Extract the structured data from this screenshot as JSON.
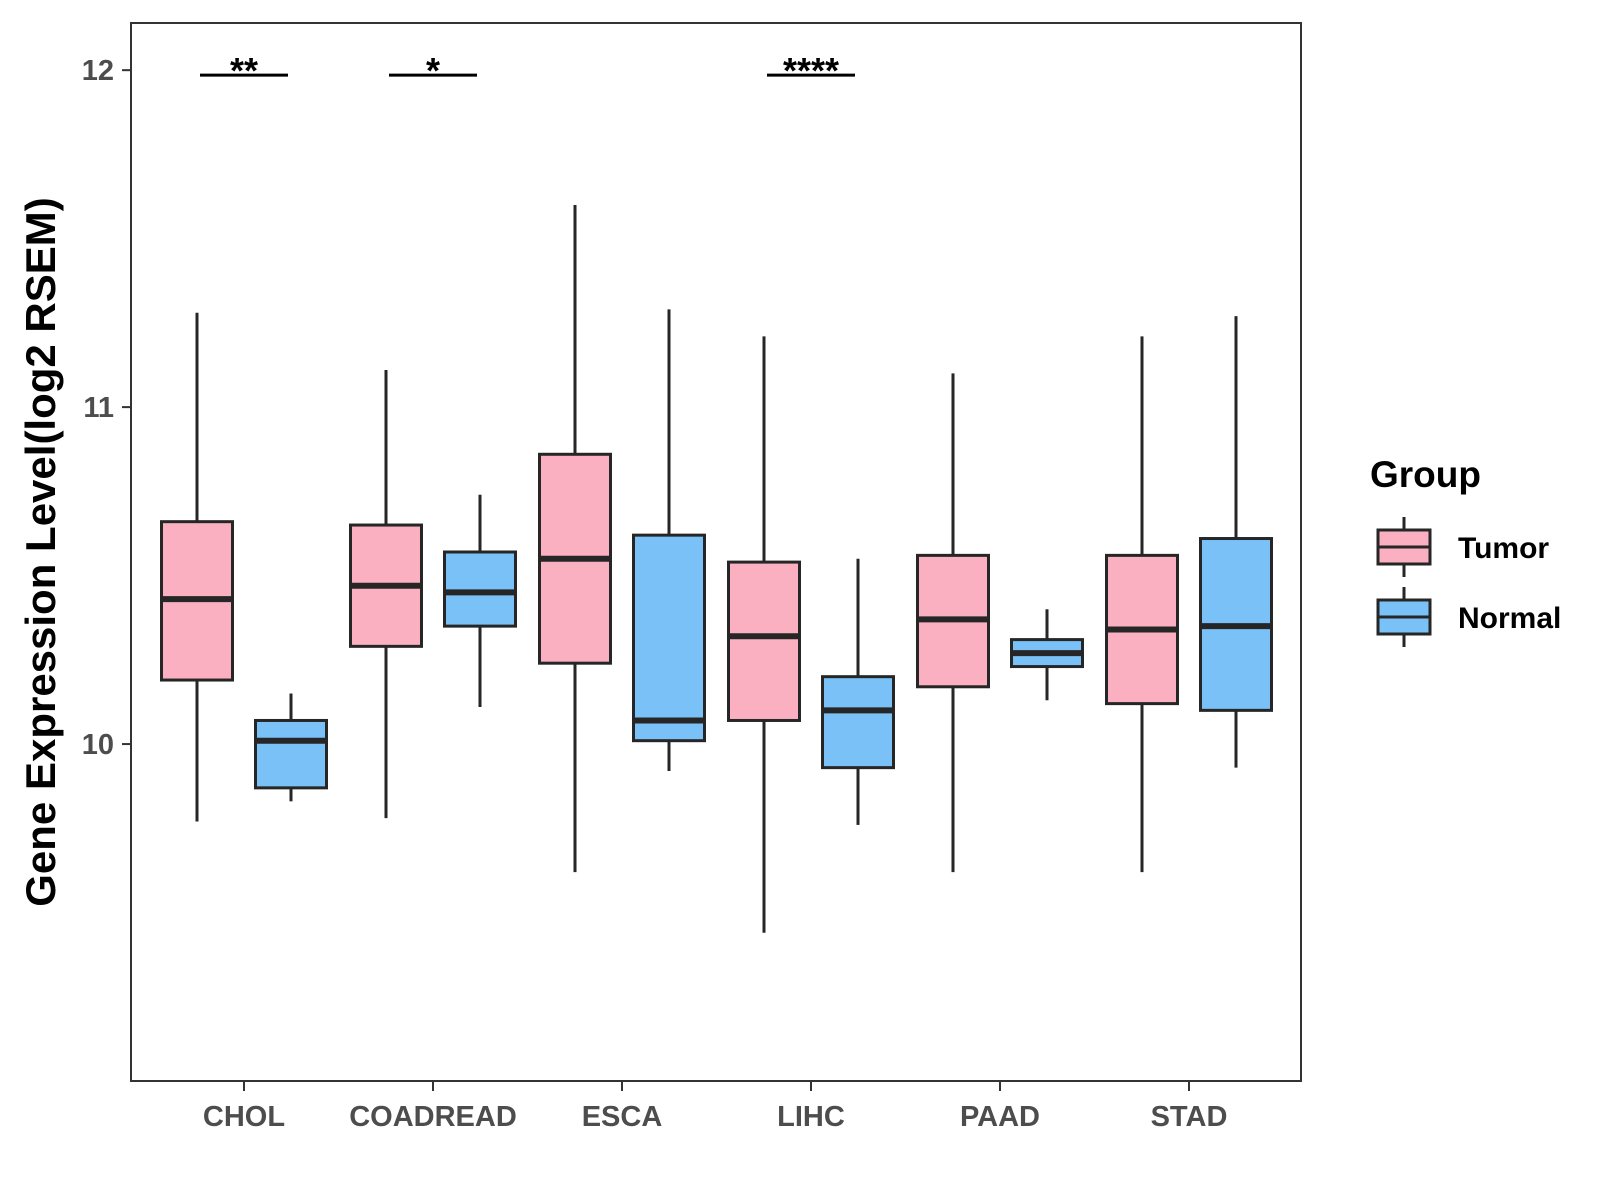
{
  "chart_data": {
    "type": "boxplot",
    "title": "",
    "xlabel": "",
    "ylabel": "Gene Expression Level(log2 RSEM)",
    "ylim": [
      9.0,
      12.14
    ],
    "yticks": [
      "10",
      "11",
      "12"
    ],
    "categories": [
      "CHOL",
      "COADREAD",
      "ESCA",
      "LIHC",
      "PAAD",
      "STAD"
    ],
    "legend": {
      "title": "Group",
      "position": "right"
    },
    "colors": {
      "Tumor": "#FBB0C2",
      "Normal": "#79C1F7",
      "stroke": "#262626"
    },
    "series": [
      {
        "name": "Tumor",
        "boxes": [
          {
            "category": "CHOL",
            "whisker_low": 9.77,
            "q1": 10.19,
            "median": 10.43,
            "q3": 10.66,
            "whisker_high": 11.28
          },
          {
            "category": "COADREAD",
            "whisker_low": 9.78,
            "q1": 10.29,
            "median": 10.47,
            "q3": 10.65,
            "whisker_high": 11.11
          },
          {
            "category": "ESCA",
            "whisker_low": 9.62,
            "q1": 10.24,
            "median": 10.55,
            "q3": 10.86,
            "whisker_high": 11.6
          },
          {
            "category": "LIHC",
            "whisker_low": 9.44,
            "q1": 10.07,
            "median": 10.32,
            "q3": 10.54,
            "whisker_high": 11.21
          },
          {
            "category": "PAAD",
            "whisker_low": 9.62,
            "q1": 10.17,
            "median": 10.37,
            "q3": 10.56,
            "whisker_high": 11.1
          },
          {
            "category": "STAD",
            "whisker_low": 9.62,
            "q1": 10.12,
            "median": 10.34,
            "q3": 10.56,
            "whisker_high": 11.21
          }
        ]
      },
      {
        "name": "Normal",
        "boxes": [
          {
            "category": "CHOL",
            "whisker_low": 9.83,
            "q1": 9.87,
            "median": 10.01,
            "q3": 10.07,
            "whisker_high": 10.15
          },
          {
            "category": "COADREAD",
            "whisker_low": 10.11,
            "q1": 10.35,
            "median": 10.45,
            "q3": 10.57,
            "whisker_high": 10.74
          },
          {
            "category": "ESCA",
            "whisker_low": 9.92,
            "q1": 10.01,
            "median": 10.07,
            "q3": 10.62,
            "whisker_high": 11.29
          },
          {
            "category": "LIHC",
            "whisker_low": 9.76,
            "q1": 9.93,
            "median": 10.1,
            "q3": 10.2,
            "whisker_high": 10.55
          },
          {
            "category": "PAAD",
            "whisker_low": 10.13,
            "q1": 10.23,
            "median": 10.27,
            "q3": 10.31,
            "whisker_high": 10.4
          },
          {
            "category": "STAD",
            "whisker_low": 9.93,
            "q1": 10.1,
            "median": 10.35,
            "q3": 10.61,
            "whisker_high": 11.27
          }
        ]
      }
    ],
    "significance": [
      {
        "category": "CHOL",
        "label": "**",
        "y": 12.0
      },
      {
        "category": "COADREAD",
        "label": "*",
        "y": 12.0
      },
      {
        "category": "LIHC",
        "label": "****",
        "y": 12.0
      }
    ]
  }
}
